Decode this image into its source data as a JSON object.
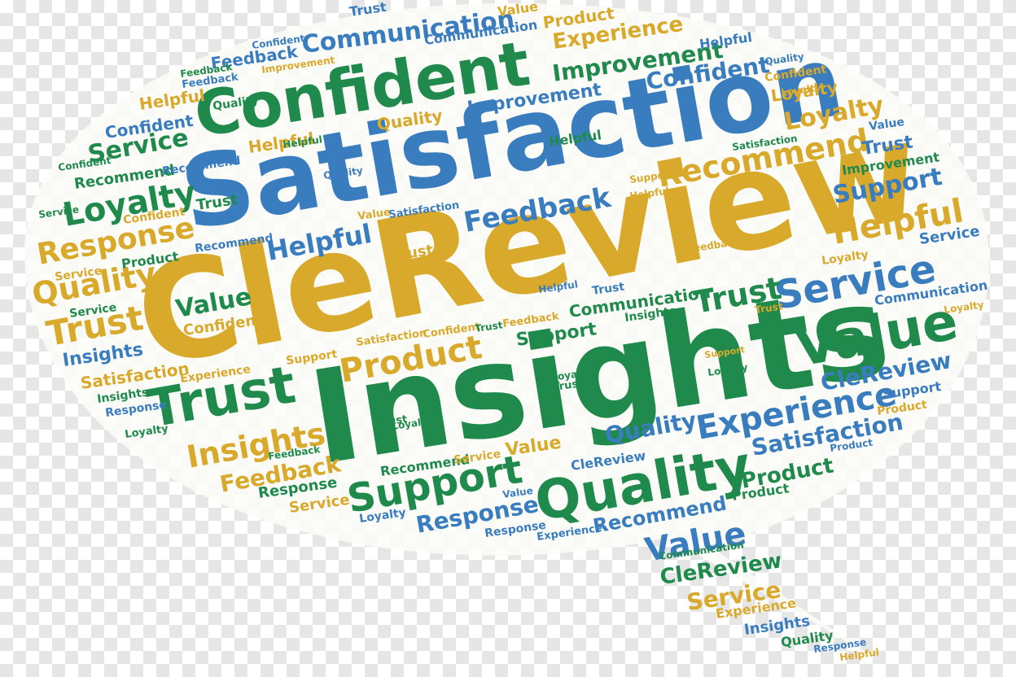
{
  "colors": {
    "blue": "#3a7dbf",
    "green": "#1f8a4c",
    "gold": "#d9a92b",
    "bubble": "#fbfbf8"
  },
  "words": {
    "w01": "CleReview",
    "w02": "Insights",
    "w03": "Satisfaction",
    "w04": "Confident",
    "w05": "Quality",
    "w06": "Value",
    "w07": "Trust",
    "w08": "Service",
    "w09": "Support",
    "w10": "Experience",
    "w11": "Recommend",
    "w12": "Helpful",
    "w13": "Loyalty",
    "w14": "Response",
    "w15": "Product",
    "w16": "Communication",
    "w17": "Improvement",
    "w18": "Feedback"
  }
}
